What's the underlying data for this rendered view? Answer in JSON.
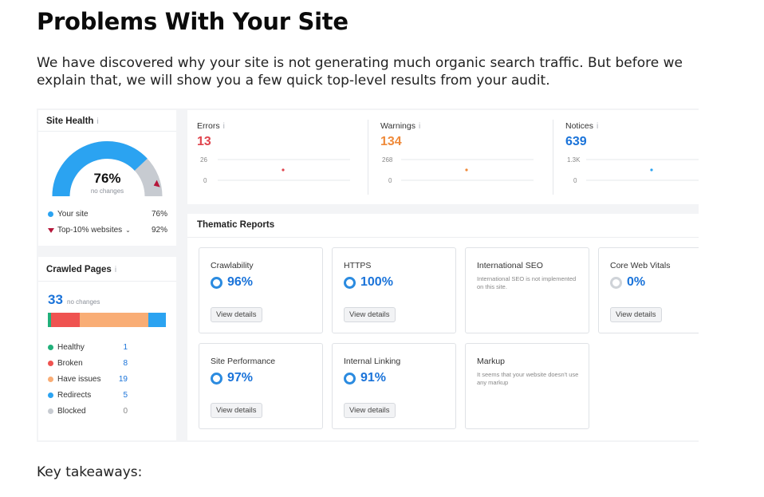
{
  "title": "Problems With Your Site",
  "intro": "We have discovered why your site is not generating much organic search traffic. But before we explain that, we will show you a few quick top-level results from your audit.",
  "takeaways": "Key takeaways:",
  "site_health": {
    "title": "Site Health",
    "info_icon": "i",
    "value": "76%",
    "sub": "no changes",
    "fill": 0.76,
    "colors": {
      "fill": "#2ba3f1",
      "rest": "#c7cbd1",
      "marker": "#b5163a"
    },
    "legend": [
      {
        "label": "Your site",
        "value": "76%",
        "color": "#2ba3f1"
      },
      {
        "label": "Top-10% websites",
        "value": "92%",
        "color": "#b5163a"
      }
    ]
  },
  "crawled": {
    "title": "Crawled Pages",
    "info_icon": "i",
    "count": "33",
    "sub": "no changes",
    "rows": [
      {
        "label": "Healthy",
        "value": "1",
        "color": "#21b07a"
      },
      {
        "label": "Broken",
        "value": "8",
        "color": "#ef5350"
      },
      {
        "label": "Have issues",
        "value": "19",
        "color": "#f9ad75"
      },
      {
        "label": "Redirects",
        "value": "5",
        "color": "#2ba3f1"
      },
      {
        "label": "Blocked",
        "value": "0",
        "color": "#c7cbd1"
      }
    ]
  },
  "metrics": [
    {
      "label": "Errors",
      "value": "13",
      "color": "#e0454e",
      "max": "26",
      "zero": "0",
      "dot_color": "#e0454e"
    },
    {
      "label": "Warnings",
      "value": "134",
      "color": "#ef8a3a",
      "max": "268",
      "zero": "0",
      "dot_color": "#ef8a3a"
    },
    {
      "label": "Notices",
      "value": "639",
      "color": "#1a73d9",
      "max": "1.3K",
      "zero": "0",
      "dot_color": "#2ba3f1"
    }
  ],
  "thematic": {
    "title": "Thematic Reports",
    "button_label": "View details",
    "cards": [
      {
        "name": "Crawlability",
        "pct": "96%"
      },
      {
        "name": "HTTPS",
        "pct": "100%"
      },
      {
        "name": "International SEO",
        "note": "International SEO is not implemented on this site."
      },
      {
        "name": "Core Web Vitals",
        "pct": "0%"
      },
      {
        "name": "Site Performance",
        "pct": "97%"
      },
      {
        "name": "Internal Linking",
        "pct": "91%"
      },
      {
        "name": "Markup",
        "note": "It seems that your website doesn't use any markup"
      }
    ]
  }
}
